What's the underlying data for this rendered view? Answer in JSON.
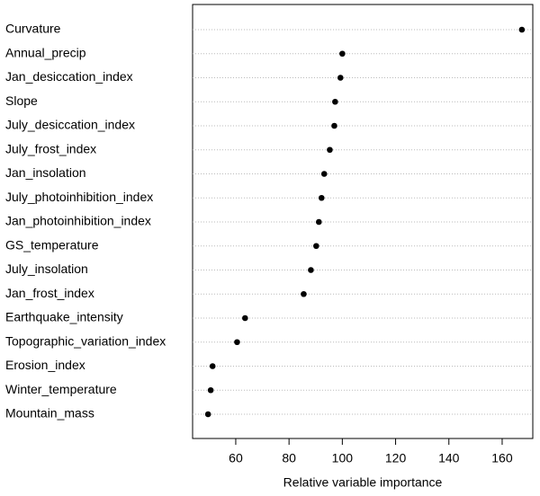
{
  "chart_data": {
    "type": "dot",
    "xlabel": "Relative variable importance",
    "categories": [
      "Curvature",
      "Annual_precip",
      "Jan_desiccation_index",
      "Slope",
      "July_desiccation_index",
      "July_frost_index",
      "Jan_insolation",
      "July_photoinhibition_index",
      "Jan_photoinhibition_index",
      "GS_temperature",
      "July_insolation",
      "Jan_frost_index",
      "Earthquake_intensity",
      "Topographic_variation_index",
      "Erosion_index",
      "Winter_temperature",
      "Mountain_mass"
    ],
    "values": [
      167.4,
      100,
      99.3,
      97.3,
      97,
      95.3,
      93.2,
      92.2,
      91.2,
      90.2,
      88.2,
      85.5,
      63.5,
      60.5,
      51.3,
      50.6,
      49.6
    ],
    "color": "#000000",
    "xlim": [
      43.8,
      171.5
    ],
    "xticks": [
      60,
      80,
      100,
      120,
      140,
      160
    ],
    "grid": true
  }
}
